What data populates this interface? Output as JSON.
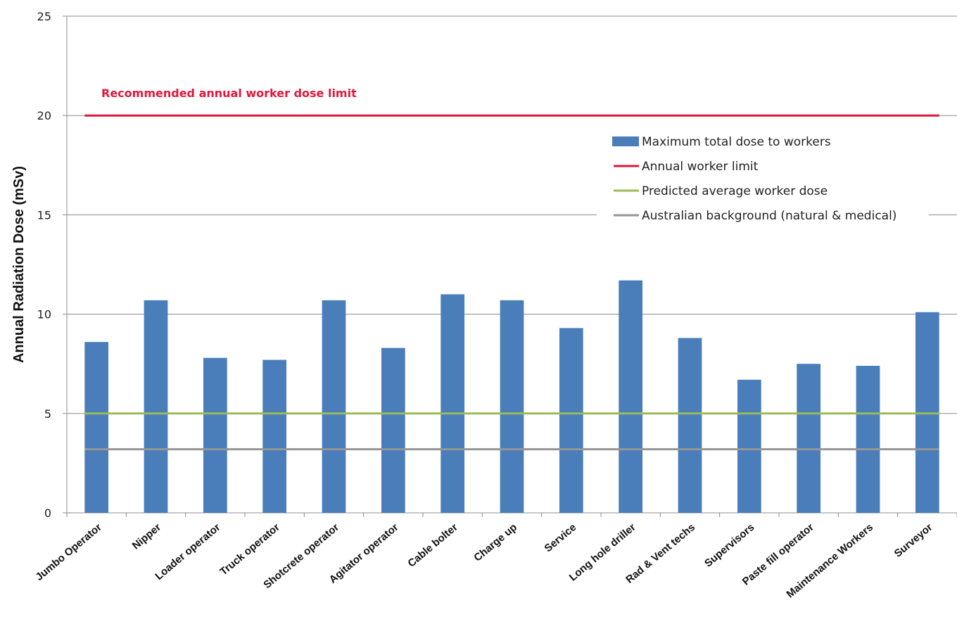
{
  "chart_data": {
    "type": "bar",
    "ylabel": "Annual Radiation Dose (mSv)",
    "xlabel": "",
    "ylim": [
      0,
      25
    ],
    "yticks": [
      0,
      5,
      10,
      15,
      20,
      25
    ],
    "categories": [
      "Jumbo Operator",
      "Nipper",
      "Loader operator",
      "Truck operator",
      "Shotcrete operator",
      "Agitator operator",
      "Cable bolter",
      "Charge up",
      "Service",
      "Long hole driller",
      "Rad & Vent techs",
      "Supervisors",
      "Paste fill operator",
      "Maintenance Workers",
      "Surveyor"
    ],
    "series": [
      {
        "name": "Maximum total dose to workers",
        "color": "#4a7ebb",
        "values": [
          8.6,
          10.7,
          7.8,
          7.7,
          10.7,
          8.3,
          11.0,
          10.7,
          9.3,
          11.7,
          8.8,
          6.7,
          7.5,
          7.4,
          10.1
        ]
      }
    ],
    "reference_lines": [
      {
        "name": "Annual worker limit",
        "value": 20,
        "color": "#e0173c"
      },
      {
        "name": "Predicted average worker dose",
        "value": 5,
        "color": "#9bbb59"
      },
      {
        "name": "Australian background (natural & medical)",
        "value": 3.2,
        "color": "#969696"
      }
    ],
    "annotation": {
      "text": "Recommended annual worker dose limit",
      "color": "#e0173c"
    },
    "legend_position": "top-right",
    "grid": true
  }
}
